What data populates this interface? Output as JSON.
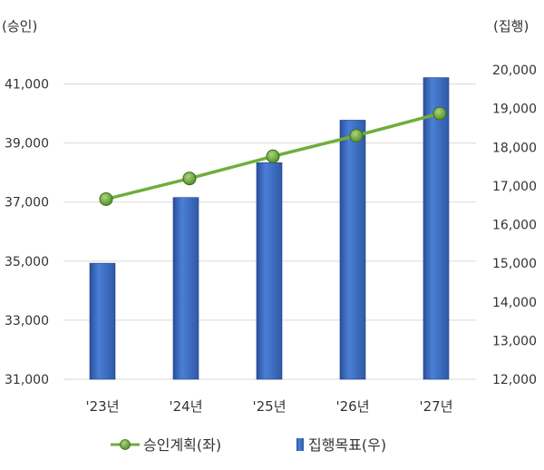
{
  "chart_data": {
    "type": "bar",
    "title": "",
    "categories": [
      "'23년",
      "'24년",
      "'25년",
      "'26년",
      "'27년"
    ],
    "left_axis": {
      "label": "(승인)",
      "ticks": [
        "31,000",
        "33,000",
        "35,000",
        "37,000",
        "39,000",
        "41,000"
      ],
      "ylim": [
        31000,
        42000
      ]
    },
    "right_axis": {
      "label": "(집행)",
      "ticks": [
        "12,000",
        "13,000",
        "14,000",
        "15,000",
        "16,000",
        "17,000",
        "18,000",
        "19,000",
        "20,000"
      ],
      "ylim": [
        12000,
        20400
      ]
    },
    "series": [
      {
        "name": "집행목표(우)",
        "type": "bar",
        "axis": "right",
        "color": "#3f6fc3",
        "values": [
          15000,
          16700,
          17600,
          18700,
          19800
        ]
      },
      {
        "name": "승인계획(좌)",
        "type": "line",
        "axis": "left",
        "color": "#6fae3b",
        "marker_color": "#6aa83a",
        "values": [
          37100,
          37800,
          38550,
          39250,
          40000
        ]
      }
    ],
    "legend_position": "bottom",
    "grid": true
  }
}
